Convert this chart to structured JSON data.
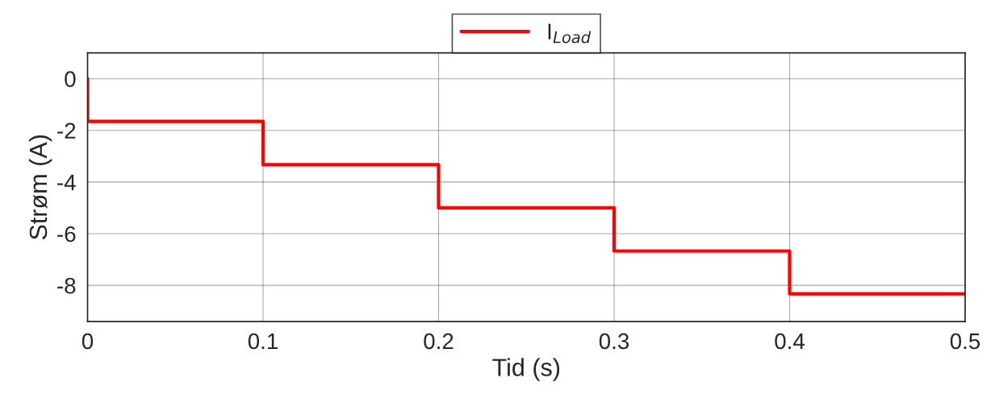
{
  "chart_data": {
    "type": "step",
    "xlabel": "Tid (s)",
    "ylabel": "Strøm (A)",
    "series": [
      {
        "name": "I$_{Load}$",
        "color": "#ff0000",
        "x": [
          0,
          0,
          0.1,
          0.2,
          0.3,
          0.4,
          0.5
        ],
        "values": [
          0,
          -1.65,
          -3.33,
          -5,
          -6.67,
          -8.33,
          -8.33
        ]
      }
    ],
    "xlim": [
      0,
      0.5
    ],
    "xticks": [
      0,
      0.1,
      0.2,
      0.3,
      0.4,
      0.5
    ],
    "ylim": [
      -9.4,
      1
    ],
    "yticks": [
      -8,
      -6,
      -4,
      -2,
      0
    ],
    "grid": true,
    "legend": "top"
  }
}
